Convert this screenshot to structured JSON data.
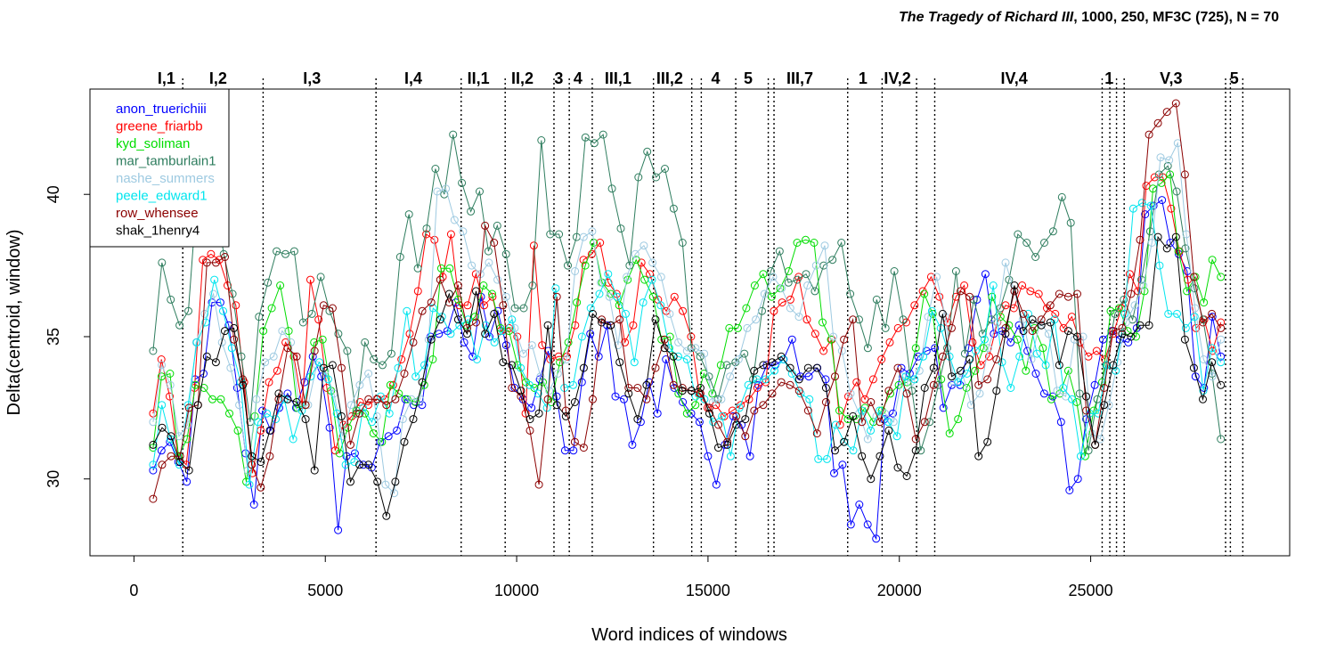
{
  "chart_data": {
    "type": "line",
    "title_italic": "The Tragedy of Richard III",
    "title_rest": ", 1000, 250, MF3C (725), N = 70",
    "xlabel": "Word indices of windows",
    "ylabel": "Delta(centroid, window)",
    "xlim": [
      -1150,
      30200
    ],
    "ylim": [
      27.3,
      43.7
    ],
    "xticks": [
      0,
      5000,
      10000,
      15000,
      20000,
      25000
    ],
    "yticks": [
      30,
      35,
      40
    ],
    "boundaries": [
      1275,
      3375,
      6325,
      8550,
      9700,
      10975,
      11375,
      11975,
      13575,
      14575,
      14825,
      15725,
      16575,
      16725,
      18650,
      19550,
      20450,
      20925,
      25300,
      25500,
      25675,
      25875,
      28525,
      28650,
      28975
    ],
    "scenes": [
      {
        "label": "I,1",
        "x": 850
      },
      {
        "label": "I,2",
        "x": 2200
      },
      {
        "label": "I,3",
        "x": 4650
      },
      {
        "label": "I,4",
        "x": 7300
      },
      {
        "label": "II,1",
        "x": 9000
      },
      {
        "label": "II,2",
        "x": 10150
      },
      {
        "label": "3",
        "x": 11100
      },
      {
        "label": "4",
        "x": 11600
      },
      {
        "label": "III,1",
        "x": 12650
      },
      {
        "label": "III,2",
        "x": 14000
      },
      {
        "label": "4",
        "x": 15200
      },
      {
        "label": "5",
        "x": 16050
      },
      {
        "label": "III,7",
        "x": 17400
      },
      {
        "label": "1",
        "x": 19050
      },
      {
        "label": "IV,2",
        "x": 19950
      },
      {
        "label": "IV,4",
        "x": 23000
      },
      {
        "label": "1",
        "x": 25480
      },
      {
        "label": "V,3",
        "x": 27100
      },
      {
        "label": "5",
        "x": 28750
      }
    ],
    "series": [
      {
        "name": "anon_truerichiii",
        "color": "#0000ff",
        "values": [
          30.3,
          31.0,
          31.3,
          30.6,
          29.9,
          33.5,
          33.7,
          36.2,
          36.2,
          35.4,
          33.2,
          30.9,
          29.1,
          32.4,
          31.7,
          32.5,
          33.0,
          32.5,
          33.4,
          34.3,
          33.6,
          31.8,
          28.2,
          30.8,
          30.9,
          30.5,
          30.4,
          31.3,
          31.5,
          31.7,
          32.8,
          32.6,
          32.6,
          35.0,
          35.1,
          35.2,
          36.2,
          34.8,
          34.3,
          36.4,
          35.0,
          35.9,
          34.7,
          33.2,
          32.8,
          32.5,
          33.5,
          34.5,
          32.9,
          31.0,
          31.0,
          33.4,
          35.1,
          34.3,
          35.4,
          32.9,
          32.8,
          31.2,
          32.0,
          33.4,
          32.3,
          34.2,
          33.2,
          32.7,
          32.3,
          32.0,
          30.8,
          29.8,
          31.2,
          32.2,
          31.9,
          30.8,
          33.3,
          34.0,
          34.0,
          34.2,
          34.9,
          33.6,
          33.6,
          33.9,
          33.5,
          30.2,
          30.5,
          28.4,
          29.1,
          28.4,
          27.9,
          32.1,
          32.3,
          33.9,
          33.7,
          34.3,
          34.5,
          34.6,
          32.5,
          33.3,
          33.3,
          34.6,
          36.3,
          37.2,
          35.1,
          35.2,
          34.8,
          35.4,
          34.5,
          33.7,
          33.0,
          32.9,
          32.0,
          29.6,
          30.0,
          32.1,
          33.3,
          34.9,
          35.2,
          34.9,
          34.8,
          35.3,
          39.3,
          39.6,
          39.8,
          38.3,
          37.9,
          37.3,
          33.6,
          33.2,
          35.7,
          34.3
        ]
      },
      {
        "name": "greene_friarbb",
        "color": "#ff0000",
        "values": [
          32.3,
          34.2,
          32.9,
          30.8,
          30.5,
          33.2,
          37.7,
          37.9,
          37.7,
          36.8,
          36.1,
          33.4,
          30.2,
          31.7,
          33.4,
          33.8,
          34.8,
          34.3,
          32.6,
          37.0,
          35.6,
          33.2,
          31.0,
          31.9,
          32.2,
          32.7,
          32.6,
          32.8,
          32.8,
          33.3,
          34.2,
          35.1,
          36.6,
          38.6,
          38.4,
          37.1,
          38.6,
          36.1,
          36.1,
          37.2,
          36.1,
          36.4,
          35.2,
          35.3,
          35.0,
          32.3,
          38.2,
          34.7,
          34.2,
          34.3,
          34.3,
          35.4,
          37.7,
          37.9,
          38.3,
          36.9,
          36.5,
          34.8,
          35.4,
          37.6,
          37.2,
          36.3,
          35.9,
          36.4,
          35.9,
          35.0,
          33.0,
          32.5,
          32.6,
          32.2,
          32.4,
          32.6,
          32.8,
          33.2,
          33.4,
          35.9,
          36.2,
          36.3,
          37.1,
          35.6,
          35.1,
          34.5,
          34.9,
          31.9,
          32.9,
          33.4,
          32.8,
          33.5,
          34.2,
          34.8,
          35.3,
          35.5,
          36.1,
          36.6,
          37.1,
          36.4,
          35.5,
          36.4,
          36.8,
          34.8,
          34.0,
          34.3,
          35.5,
          36.1,
          36.0,
          36.8,
          36.6,
          36.5,
          36.0,
          35.8,
          35.3,
          35.7,
          34.8,
          34.3,
          34.5,
          34.2,
          35.1,
          36.0,
          37.2,
          36.6,
          40.3,
          40.6,
          40.6,
          39.5,
          38.0,
          37.0,
          35.3,
          35.6,
          34.5,
          35.5
        ]
      },
      {
        "name": "kyd_soliman",
        "color": "#00dd00",
        "values": [
          31.1,
          33.6,
          33.7,
          30.8,
          31.4,
          33.3,
          33.2,
          32.8,
          32.8,
          32.3,
          31.7,
          29.9,
          32.2,
          35.2,
          36.0,
          36.8,
          35.2,
          32.5,
          32.6,
          34.8,
          34.9,
          33.1,
          30.9,
          31.8,
          32.4,
          32.3,
          31.6,
          31.3,
          33.3,
          33.0,
          32.8,
          32.7,
          33.3,
          34.2,
          37.4,
          37.4,
          36.3,
          35.4,
          35.7,
          36.8,
          36.5,
          35.3,
          35.2,
          34.0,
          33.4,
          33.2,
          33.4,
          32.7,
          34.1,
          34.8,
          36.2,
          37.5,
          38.3,
          36.9,
          36.5,
          36.1,
          37.0,
          37.7,
          37.0,
          36.4,
          34.9,
          35.0,
          33.0,
          32.3,
          32.6,
          33.7,
          33.0,
          34.0,
          35.3,
          35.3,
          36.0,
          36.8,
          37.2,
          36.4,
          36.7,
          37.3,
          38.3,
          38.4,
          38.3,
          35.5,
          34.9,
          32.4,
          32.1,
          32.1,
          32.5,
          32.0,
          32.4,
          33.0,
          33.3,
          33.4,
          34.6,
          36.5,
          35.8,
          33.5,
          31.6,
          32.1,
          33.2,
          33.8,
          34.6,
          36.4,
          35.7,
          35.4,
          34.9,
          33.8,
          35.3,
          34.6,
          32.8,
          33.0,
          33.8,
          32.7,
          30.8,
          32.4,
          33.4,
          35.9,
          36.0,
          35.2,
          35.0,
          36.6,
          40.2,
          40.4,
          40.7,
          38.0,
          36.6,
          37.1,
          36.2,
          37.7,
          37.1
        ]
      },
      {
        "name": "mar_tamburlain1",
        "color": "#2e7d5e",
        "values": [
          34.5,
          37.6,
          36.3,
          35.4,
          35.9,
          40.1,
          39.8,
          40.0,
          37.9,
          36.5,
          34.3,
          32.0,
          35.7,
          36.9,
          38.0,
          37.9,
          38.0,
          35.5,
          35.8,
          37.1,
          35.9,
          35.1,
          34.5,
          32.3,
          34.8,
          34.2,
          34.0,
          34.4,
          37.8,
          39.3,
          37.4,
          38.8,
          40.9,
          40.0,
          42.1,
          40.4,
          39.4,
          40.1,
          38.0,
          38.9,
          37.9,
          36.0,
          36.0,
          36.8,
          41.9,
          38.6,
          38.6,
          37.5,
          38.5,
          42.0,
          41.8,
          42.1,
          40.2,
          38.8,
          37.5,
          40.6,
          41.5,
          40.6,
          40.9,
          39.5,
          38.3,
          34.6,
          34.3,
          33.6,
          32.8,
          34.0,
          34.1,
          34.4,
          33.5,
          35.9,
          37.3,
          38.0,
          36.9,
          37.0,
          37.2,
          36.6,
          37.5,
          37.7,
          38.3,
          36.5,
          35.6,
          34.6,
          36.3,
          35.3,
          37.3,
          35.6,
          33.1,
          31.0,
          32.0,
          33.3,
          34.6,
          37.3,
          34.4,
          36.3,
          35.1,
          35.6,
          36.0,
          37.0,
          38.6,
          38.3,
          37.8,
          38.3,
          38.7,
          39.9,
          39.0,
          33.0,
          31.0,
          32.8,
          34.0,
          35.8,
          36.3,
          35.6,
          37.0,
          38.7,
          40.7,
          41.0,
          40.1,
          38.1,
          36.7,
          35.6,
          33.7,
          31.4
        ]
      },
      {
        "name": "nashe_summers",
        "color": "#9ecae1",
        "values": [
          32.0,
          34.0,
          33.3,
          31.5,
          31.9,
          34.8,
          35.8,
          36.5,
          34.8,
          33.9,
          32.6,
          30.3,
          32.8,
          34.1,
          34.3,
          35.2,
          34.8,
          32.5,
          32.6,
          34.0,
          33.8,
          33.0,
          31.5,
          32.6,
          33.3,
          33.7,
          32.2,
          29.8,
          29.5,
          32.1,
          32.8,
          32.8,
          34.9,
          40.1,
          40.2,
          39.1,
          38.7,
          37.5,
          37.2,
          37.6,
          37.0,
          36.4,
          35.3,
          34.4,
          34.7,
          33.6,
          33.1,
          33.7,
          34.2,
          37.3,
          38.5,
          38.7,
          36.9,
          36.4,
          34.7,
          37.1,
          37.9,
          38.2,
          37.6,
          37.1,
          35.8,
          34.8,
          34.5,
          34.6,
          34.4,
          32.7,
          32.8,
          33.6,
          34.2,
          35.3,
          35.6,
          36.5,
          37.1,
          36.7,
          36.0,
          35.7,
          36.8,
          37.5,
          38.2,
          35.0,
          34.5,
          33.0,
          32.3,
          31.4,
          32.2,
          32.3,
          32.0,
          33.6,
          33.4,
          33.8,
          35.7,
          37.1,
          35.7,
          33.4,
          33.7,
          32.6,
          33.0,
          34.6,
          35.5,
          37.6,
          36.6,
          35.6,
          34.2,
          35.5,
          35.1,
          33.1,
          32.9,
          34.9,
          35.0,
          31.6,
          31.4,
          32.6,
          34.1,
          35.5,
          36.1,
          36.8,
          38.3,
          41.3,
          41.2,
          41.8,
          38.6,
          36.0,
          34.2,
          33.6,
          34.9
        ]
      },
      {
        "name": "peele_edward1",
        "color": "#00e5ee",
        "values": [
          30.5,
          32.6,
          31.4,
          30.5,
          32.6,
          34.8,
          35.5,
          37.0,
          35.9,
          34.6,
          33.4,
          29.8,
          32.0,
          32.3,
          32.1,
          32.8,
          31.4,
          32.4,
          33.6,
          34.1,
          33.5,
          32.3,
          30.5,
          30.6,
          32.5,
          32.0,
          32.9,
          32.3,
          33.9,
          35.9,
          33.6,
          34.0,
          36.0,
          35.7,
          35.1,
          35.4,
          35.6,
          34.2,
          35.4,
          34.8,
          35.2,
          35.6,
          33.9,
          33.3,
          33.0,
          32.5,
          36.7,
          33.2,
          33.3,
          35.0,
          36.0,
          36.5,
          37.2,
          36.4,
          35.8,
          34.1,
          36.2,
          37.0,
          36.1,
          34.6,
          34.3,
          34.2,
          32.9,
          32.8,
          32.0,
          32.2,
          30.8,
          32.5,
          33.3,
          33.5,
          33.5,
          33.8,
          34.2,
          33.7,
          33.0,
          32.8,
          30.7,
          30.7,
          31.9,
          31.3,
          31.0,
          32.4,
          31.7,
          32.4,
          32.0,
          31.5,
          33.6,
          33.5,
          34.3,
          35.9,
          35.3,
          34.3,
          33.4,
          33.7,
          34.5,
          34.9,
          36.8,
          34.1,
          33.2,
          34.3,
          35.8,
          34.4,
          34.0,
          35.6,
          33.2,
          32.8,
          30.8,
          32.3,
          32.3,
          34.0,
          33.8,
          35.8,
          39.5,
          39.7,
          39.6,
          37.5,
          35.8,
          35.8,
          35.3,
          35.7,
          33.1,
          34.6,
          34.1
        ]
      },
      {
        "name": "row_whensee",
        "color": "#8b0000",
        "values": [
          29.3,
          30.5,
          30.8,
          30.8,
          32.5,
          32.6,
          37.6,
          37.6,
          37.8,
          34.9,
          33.5,
          30.5,
          29.7,
          30.8,
          32.8,
          34.6,
          34.3,
          32.6,
          34.5,
          36.1,
          36.0,
          33.9,
          31.2,
          32.3,
          32.8,
          32.8,
          32.6,
          32.8,
          33.7,
          34.8,
          35.9,
          36.2,
          37.0,
          36.2,
          36.8,
          35.3,
          35.5,
          38.9,
          38.3,
          36.1,
          33.2,
          32.9,
          31.7,
          29.8,
          32.8,
          36.4,
          32.4,
          31.3,
          31.1,
          32.8,
          35.6,
          35.4,
          35.6,
          33.2,
          33.2,
          32.8,
          33.9,
          34.9,
          33.3,
          33.2,
          33.1,
          33.0,
          32.5,
          31.9,
          31.3,
          32.2,
          31.5,
          32.4,
          32.6,
          33.0,
          33.4,
          33.3,
          33.1,
          32.4,
          31.6,
          32.7,
          33.6,
          34.9,
          35.6,
          32.0,
          32.7,
          32.0,
          33.1,
          33.9,
          33.0,
          31.4,
          32.0,
          33.3,
          34.3,
          35.3,
          36.6,
          36.4,
          33.3,
          33.5,
          34.2,
          35.3,
          36.6,
          35.8,
          35.2,
          35.6,
          36.1,
          36.5,
          36.4,
          36.5,
          32.4,
          31.2,
          33.2,
          35.2,
          35.3,
          36.5,
          38.4,
          42.1,
          42.5,
          42.9,
          43.2,
          40.7,
          37.1,
          35.5,
          35.8,
          35.3
        ]
      },
      {
        "name": "shak_1henry4",
        "color": "#000000",
        "values": [
          31.2,
          31.8,
          31.5,
          30.6,
          30.3,
          32.6,
          34.3,
          34.1,
          35.2,
          35.3,
          33.3,
          30.8,
          30.6,
          31.7,
          33.0,
          32.8,
          32.7,
          32.1,
          30.3,
          33.9,
          34.0,
          32.2,
          29.9,
          30.5,
          30.5,
          29.9,
          28.7,
          29.9,
          31.3,
          32.1,
          33.4,
          34.9,
          35.6,
          36.5,
          35.6,
          35.1,
          36.6,
          35.1,
          35.8,
          34.1,
          34.0,
          33.1,
          32.1,
          32.3,
          35.4,
          32.6,
          32.2,
          32.7,
          33.9,
          35.8,
          35.5,
          35.4,
          34.1,
          33.0,
          32.1,
          33.3,
          35.6,
          34.6,
          34.3,
          33.1,
          33.1,
          33.2,
          32.3,
          31.1,
          31.2,
          31.9,
          32.1,
          33.8,
          34.0,
          34.1,
          34.3,
          33.9,
          33.5,
          33.9,
          33.9,
          33.2,
          31.0,
          31.3,
          32.2,
          30.8,
          30.0,
          30.8,
          31.7,
          30.4,
          30.1,
          31.0,
          33.2,
          33.9,
          35.8,
          33.6,
          33.8,
          34.2,
          30.8,
          31.3,
          33.1,
          35.1,
          36.8,
          35.2,
          35.6,
          35.4,
          35.5,
          34.0,
          35.2,
          35.0,
          32.9,
          31.2,
          32.6,
          34.0,
          35.1,
          35.0,
          35.4,
          35.4,
          38.5,
          38.1,
          38.5,
          34.9,
          33.9,
          32.8,
          34.1,
          33.3
        ]
      }
    ]
  }
}
